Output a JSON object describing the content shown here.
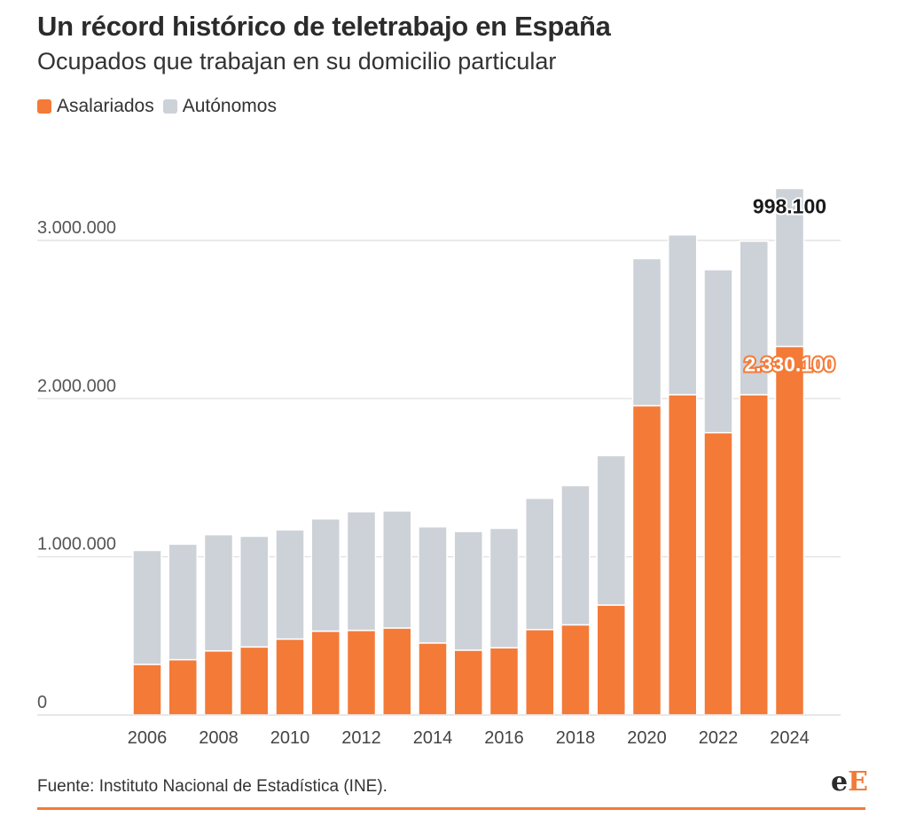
{
  "title": "Un récord histórico de teletrabajo en España",
  "subtitle": "Ocupados que trabajan en su domicilio particular",
  "legend": {
    "asalariados": "Asalariados",
    "autonomos": "Autónomos"
  },
  "colors": {
    "asalariados": "#f47a38",
    "autonomos": "#cdd1d8"
  },
  "source": "Fuente: Instituto Nacional de Estadística (INE).",
  "logo": {
    "first": "e",
    "second": "E"
  },
  "chart_data": {
    "type": "bar",
    "stacked": true,
    "categories": [
      "2006",
      "2007",
      "2008",
      "2009",
      "2010",
      "2011",
      "2012",
      "2013",
      "2014",
      "2015",
      "2016",
      "2017",
      "2018",
      "2019",
      "2020",
      "2021",
      "2022",
      "2023",
      "2024"
    ],
    "x_tick_labels": [
      "2006",
      "2008",
      "2010",
      "2012",
      "2014",
      "2016",
      "2018",
      "2020",
      "2022",
      "2024"
    ],
    "series": [
      {
        "name": "Asalariados",
        "values": [
          320000,
          350000,
          405000,
          430000,
          480000,
          530000,
          535000,
          550000,
          455000,
          410000,
          425000,
          540000,
          570000,
          695000,
          1955000,
          2025000,
          1785000,
          2025000,
          2330100
        ]
      },
      {
        "name": "Autónomos",
        "values": [
          720000,
          730000,
          735000,
          700000,
          690000,
          710000,
          750000,
          740000,
          735000,
          750000,
          755000,
          830000,
          880000,
          945000,
          930000,
          1010000,
          1030000,
          970000,
          998100
        ]
      }
    ],
    "ylim": [
      0,
      3400000
    ],
    "y_ticks": [
      0,
      1000000,
      2000000,
      3000000
    ],
    "y_tick_labels": [
      "0",
      "1.000.000",
      "2.000.000",
      "3.000.000"
    ],
    "annotations": {
      "autonomos_last": "998.100",
      "asalariados_last": "2.330.100"
    },
    "grid": true
  }
}
